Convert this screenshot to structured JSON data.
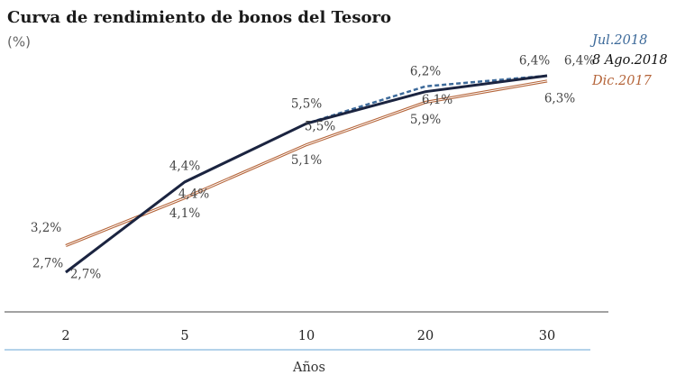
{
  "chart_data": {
    "type": "line",
    "title": "Curva de rendimiento de bonos del Tesoro",
    "subtitle": "(%)",
    "x_label": "Años",
    "categories": [
      "2",
      "5",
      "10",
      "20",
      "30"
    ],
    "series": [
      {
        "name": "Jul.2018",
        "color": "#3d6a9a",
        "style": "dashed",
        "values": [
          2.7,
          4.4,
          5.5,
          6.2,
          6.4
        ],
        "value_labels": [
          "2,7%",
          "4,4%",
          "5,5%",
          "6,2%",
          "6,4%"
        ]
      },
      {
        "name": "8 Ago.2018",
        "color": "#1b2440",
        "style": "solid",
        "values": [
          2.7,
          4.4,
          5.5,
          6.1,
          6.4
        ],
        "value_labels": [
          "2,7%",
          "4,4%",
          "5,5%",
          "6,1%",
          "6,4%"
        ]
      },
      {
        "name": "Dic.2017",
        "color": "#b5653a",
        "style": "double",
        "values": [
          3.2,
          4.1,
          5.1,
          5.9,
          6.3
        ],
        "value_labels": [
          "3,2%",
          "4,1%",
          "5,1%",
          "5,9%",
          "6,3%"
        ]
      }
    ]
  }
}
